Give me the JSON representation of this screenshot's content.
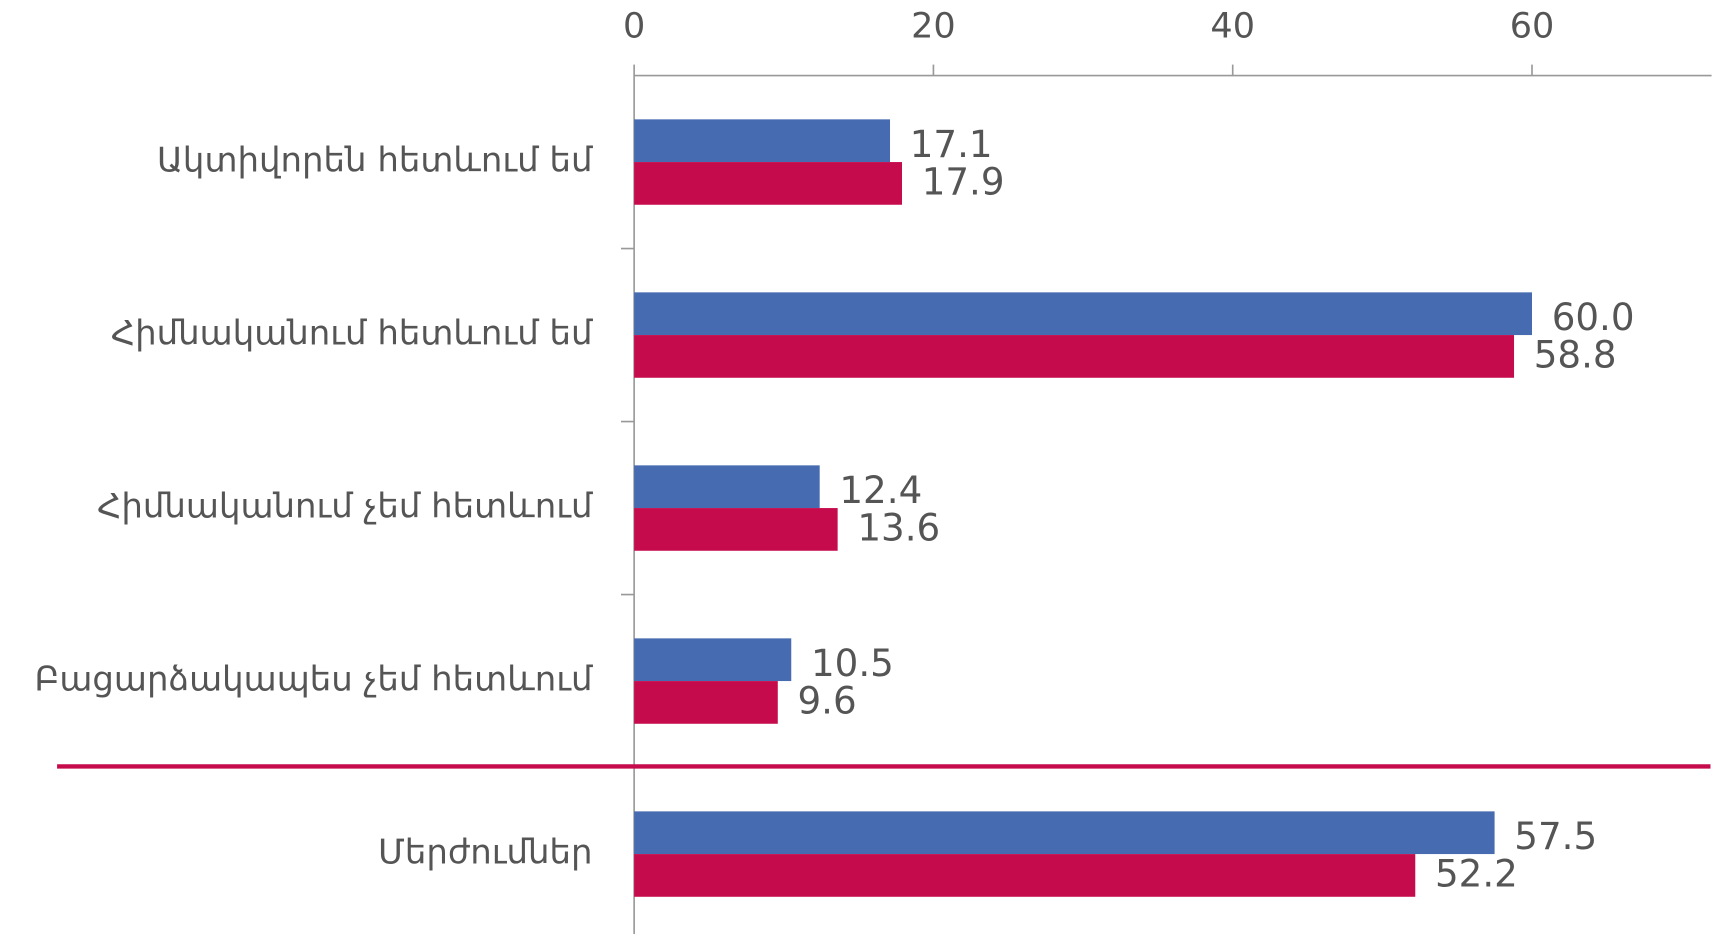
{
  "chart_data": {
    "type": "bar",
    "orientation": "horizontal",
    "categories": [
      "Ակտիվորեն հետևում եմ",
      "Հիմնականում հետևում եմ",
      "Հիմնականում չեմ հետևում",
      "Բացարձակապես չեմ հետևում",
      "Մերժումներ"
    ],
    "series": [
      {
        "color": "#466bb0",
        "values": [
          17.1,
          60.0,
          12.4,
          10.5,
          57.5
        ],
        "value_labels": [
          "17.1",
          "60.0",
          "12.4",
          "10.5",
          "57.5"
        ]
      },
      {
        "color": "#c50b4c",
        "values": [
          17.9,
          58.8,
          13.6,
          9.6,
          52.2
        ],
        "value_labels": [
          "17.9",
          "58.8",
          "13.6",
          "9.6",
          "52.2"
        ]
      }
    ],
    "xlim": [
      0,
      72
    ],
    "xticks": [
      0,
      20,
      40,
      60
    ],
    "separator_color": "#c50b4c"
  }
}
